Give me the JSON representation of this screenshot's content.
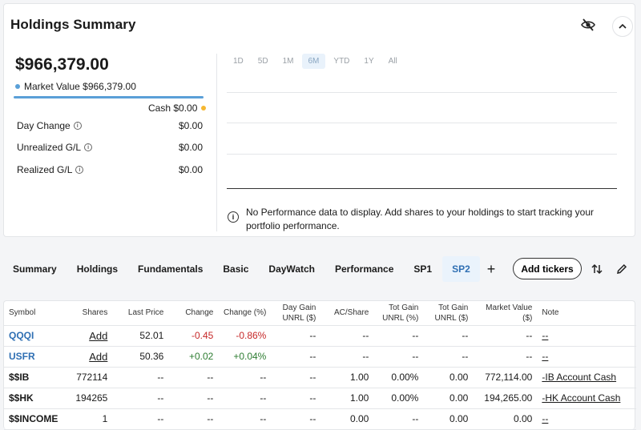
{
  "header": {
    "title": "Holdings Summary"
  },
  "summary": {
    "total": "$966,379.00",
    "market_value_label": "Market Value $966,379.00",
    "cash_label": "Cash $0.00",
    "colors": {
      "market_value": "#5aa0d8",
      "cash": "#f5b731"
    },
    "stats": [
      {
        "label": "Day Change",
        "value": "$0.00"
      },
      {
        "label": "Unrealized G/L",
        "value": "$0.00"
      },
      {
        "label": "Realized G/L",
        "value": "$0.00"
      }
    ]
  },
  "chart": {
    "ranges": [
      "1D",
      "5D",
      "1M",
      "6M",
      "YTD",
      "1Y",
      "All"
    ],
    "active_range": "6M",
    "no_data_message": "No Performance data to display. Add shares to your holdings to start tracking your portfolio performance."
  },
  "tabs": [
    "Summary",
    "Holdings",
    "Fundamentals",
    "Basic",
    "DayWatch",
    "Performance",
    "SP1",
    "SP2"
  ],
  "active_tab": "SP2",
  "toolbar": {
    "plus": "+",
    "add_tickers": "Add tickers"
  },
  "table": {
    "headers": {
      "symbol": "Symbol",
      "shares": "Shares",
      "last_price": "Last Price",
      "change": "Change",
      "change_pct": "Change (%)",
      "day_gain_1": "Day Gain",
      "day_gain_2": "UNRL ($)",
      "ac_share": "AC/Share",
      "tot_gain_pct_1": "Tot Gain",
      "tot_gain_pct_2": "UNRL (%)",
      "tot_gain_usd_1": "Tot Gain",
      "tot_gain_usd_2": "UNRL ($)",
      "market_value_1": "Market Value",
      "market_value_2": "($)",
      "note": "Note"
    },
    "rows": [
      {
        "symbol": "QQQI",
        "shares": "Add",
        "last_price": "52.01",
        "change": "-0.45",
        "change_pct": "-0.86%",
        "day_gain": "--",
        "ac_share": "--",
        "tot_gain_pct": "--",
        "tot_gain_usd": "--",
        "market_value": "--",
        "note": "--"
      },
      {
        "symbol": "USFR",
        "shares": "Add",
        "last_price": "50.36",
        "change": "+0.02",
        "change_pct": "+0.04%",
        "day_gain": "--",
        "ac_share": "--",
        "tot_gain_pct": "--",
        "tot_gain_usd": "--",
        "market_value": "--",
        "note": "--"
      },
      {
        "symbol": "$$IB",
        "shares": "772114",
        "last_price": "--",
        "change": "--",
        "change_pct": "--",
        "day_gain": "--",
        "ac_share": "1.00",
        "tot_gain_pct": "0.00%",
        "tot_gain_usd": "0.00",
        "market_value": "772,114.00",
        "note": "-IB Account Cash"
      },
      {
        "symbol": "$$HK",
        "shares": "194265",
        "last_price": "--",
        "change": "--",
        "change_pct": "--",
        "day_gain": "--",
        "ac_share": "1.00",
        "tot_gain_pct": "0.00%",
        "tot_gain_usd": "0.00",
        "market_value": "194,265.00",
        "note": "-HK Account Cash"
      },
      {
        "symbol": "$$INCOME",
        "shares": "1",
        "last_price": "--",
        "change": "--",
        "change_pct": "--",
        "day_gain": "--",
        "ac_share": "0.00",
        "tot_gain_pct": "--",
        "tot_gain_usd": "0.00",
        "market_value": "0.00",
        "note": "--"
      }
    ]
  }
}
